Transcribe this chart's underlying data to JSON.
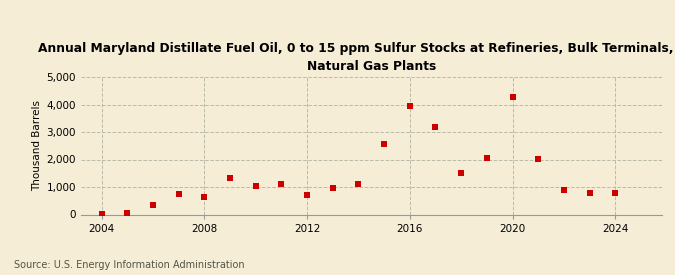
{
  "title": "Annual Maryland Distillate Fuel Oil, 0 to 15 ppm Sulfur Stocks at Refineries, Bulk Terminals, and\nNatural Gas Plants",
  "ylabel": "Thousand Barrels",
  "source": "Source: U.S. Energy Information Administration",
  "background_color": "#f5edd6",
  "plot_bg_color": "#f5edd6",
  "marker_color": "#cc0000",
  "years": [
    2004,
    2005,
    2006,
    2007,
    2008,
    2009,
    2010,
    2011,
    2012,
    2013,
    2014,
    2015,
    2016,
    2017,
    2018,
    2019,
    2020,
    2021,
    2022,
    2023,
    2024
  ],
  "values": [
    30,
    70,
    330,
    760,
    620,
    1320,
    1050,
    1100,
    720,
    960,
    1100,
    2560,
    3960,
    3200,
    1520,
    2070,
    4270,
    2020,
    900,
    780,
    780
  ],
  "ylim": [
    0,
    5000
  ],
  "yticks": [
    0,
    1000,
    2000,
    3000,
    4000,
    5000
  ],
  "xticks": [
    2004,
    2008,
    2012,
    2016,
    2020,
    2024
  ],
  "grid_color": "#bbbbaa",
  "title_fontsize": 8.8,
  "label_fontsize": 7.5,
  "tick_fontsize": 7.5,
  "source_fontsize": 7.0
}
